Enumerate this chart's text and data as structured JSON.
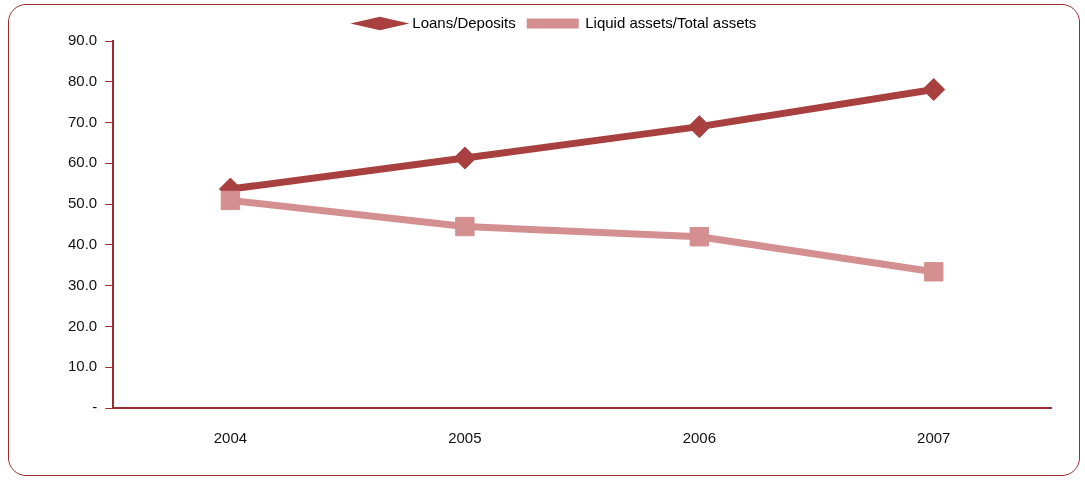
{
  "chart_data": {
    "type": "line",
    "categories": [
      "2004",
      "2005",
      "2006",
      "2007"
    ],
    "series": [
      {
        "name": "Loans/Deposits",
        "color": "#a84040",
        "values": [
          53.7,
          61.3,
          69.0,
          78.1
        ],
        "marker": "diamond"
      },
      {
        "name": "Liquid assets/Total assets",
        "color": "#d49090",
        "values": [
          50.9,
          44.5,
          42.0,
          33.4
        ],
        "marker": "square"
      }
    ],
    "ylim": [
      0,
      90
    ],
    "yticks": [
      {
        "value": 0,
        "label": "-"
      },
      {
        "value": 10,
        "label": "10.0"
      },
      {
        "value": 20,
        "label": "20.0"
      },
      {
        "value": 30,
        "label": "30.0"
      },
      {
        "value": 40,
        "label": "40.0"
      },
      {
        "value": 50,
        "label": "50.0"
      },
      {
        "value": 60,
        "label": "60.0"
      },
      {
        "value": 70,
        "label": "70.0"
      },
      {
        "value": 80,
        "label": "80.0"
      },
      {
        "value": 90,
        "label": "90.0"
      }
    ],
    "grid": false,
    "legend": "top",
    "line_style": "solid"
  }
}
